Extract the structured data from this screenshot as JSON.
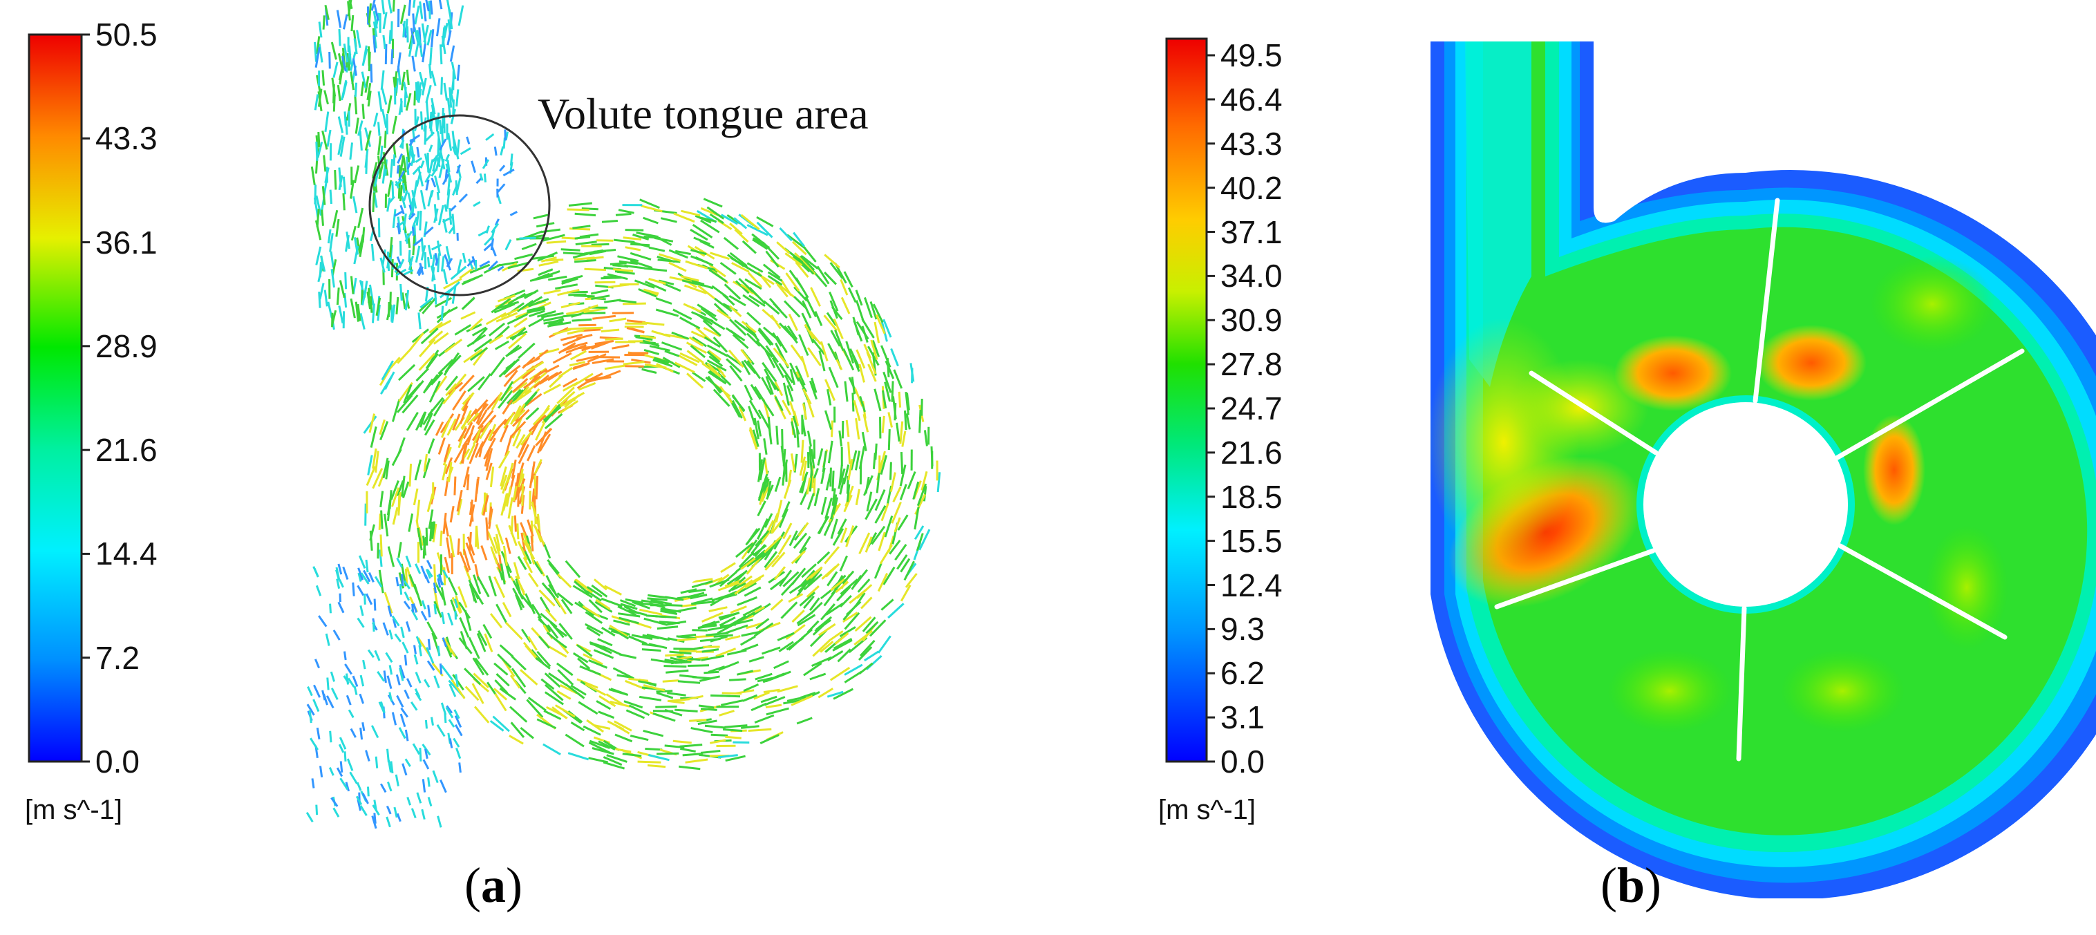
{
  "panel_a": {
    "caption_open": "(",
    "caption_letter": "a",
    "caption_close": ")",
    "annotation": "Volute tongue area",
    "colorbar": {
      "ticks": [
        "50.5",
        "43.3",
        "36.1",
        "28.9",
        "21.6",
        "14.4",
        "7.2",
        "0.0"
      ],
      "unit": "[m s^-1]",
      "min": 0.0,
      "max": 50.5
    }
  },
  "panel_b": {
    "caption_open": "(",
    "caption_letter": "b",
    "caption_close": ")",
    "colorbar": {
      "ticks": [
        "49.5",
        "46.4",
        "43.3",
        "40.2",
        "37.1",
        "34.0",
        "30.9",
        "27.8",
        "24.7",
        "21.6",
        "18.5",
        "15.5",
        "12.4",
        "9.3",
        "6.2",
        "3.1",
        "0.0"
      ],
      "unit": "[m s^-1]",
      "min": 0.0,
      "max": 49.5
    }
  },
  "colormap": [
    "#0000ff",
    "#0064ff",
    "#00c8ff",
    "#00ffdc",
    "#00ff96",
    "#00f000",
    "#5af000",
    "#b4f000",
    "#f0f000",
    "#ffc800",
    "#ff8c00",
    "#ff3c00",
    "#f00000"
  ],
  "colors": {
    "vector_green": "#3cd23c",
    "vector_yellow": "#e6e628",
    "vector_orange": "#ff8c28",
    "vector_cyan": "#28dcdc",
    "vector_blue": "#3296ff",
    "contour_green": "#2ee02e",
    "contour_edge_blue": "#1464ff",
    "contour_cyan": "#00e6ff",
    "blade_white": "#ffffff"
  }
}
